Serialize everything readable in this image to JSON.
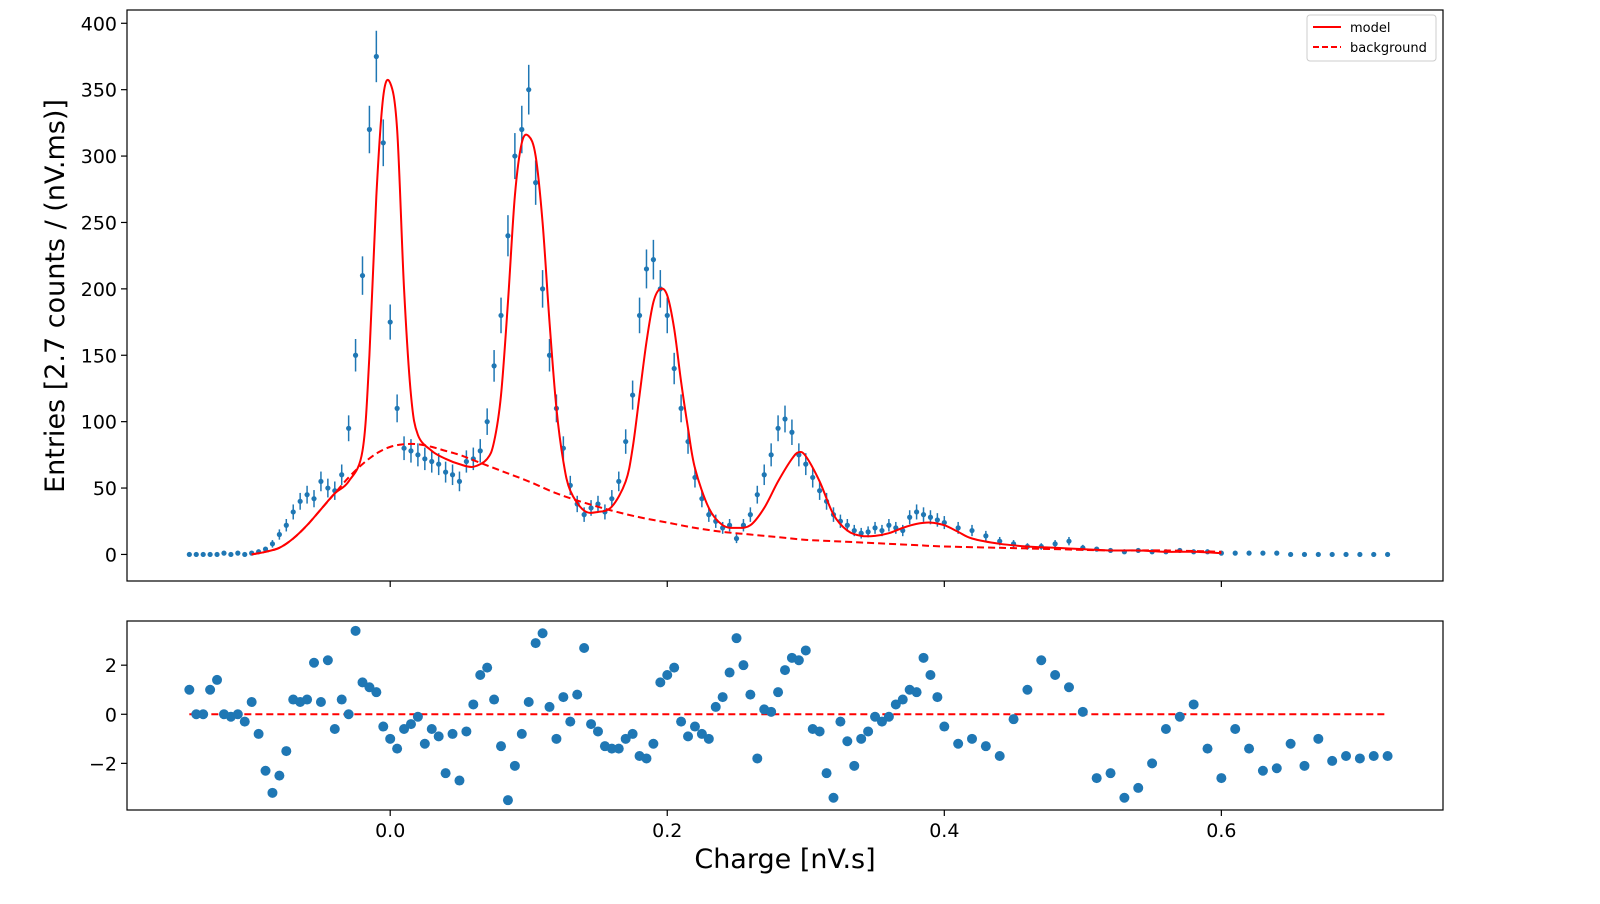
{
  "chart_data": [
    {
      "type": "scatter",
      "panel": "main",
      "xlabel": "",
      "ylabel": "Entries [2.7 counts / (nV.ms)]",
      "xlim": [
        -0.19,
        0.76
      ],
      "ylim": [
        -20,
        410
      ],
      "yticks": [
        0,
        50,
        100,
        150,
        200,
        250,
        300,
        350,
        400
      ],
      "yticklabels": [
        "0",
        "50",
        "100",
        "150",
        "200",
        "250",
        "300",
        "350",
        "400"
      ],
      "xticks": [
        0.0,
        0.2,
        0.4,
        0.6
      ],
      "legend": {
        "position": "top-right",
        "entries": [
          {
            "label": "model",
            "style": "solid",
            "color": "#ff0000"
          },
          {
            "label": "background",
            "style": "dashed",
            "color": "#ff0000"
          }
        ]
      },
      "colors": {
        "data": "#1f77b4",
        "model": "#ff0000"
      },
      "series": [
        {
          "name": "data",
          "style": "points-with-errorbars",
          "x": [
            -0.145,
            -0.14,
            -0.135,
            -0.13,
            -0.125,
            -0.12,
            -0.115,
            -0.11,
            -0.105,
            -0.1,
            -0.095,
            -0.09,
            -0.085,
            -0.08,
            -0.075,
            -0.07,
            -0.065,
            -0.06,
            -0.055,
            -0.05,
            -0.045,
            -0.04,
            -0.035,
            -0.03,
            -0.025,
            -0.02,
            -0.015,
            -0.01,
            -0.005,
            0.0,
            0.005,
            0.01,
            0.015,
            0.02,
            0.025,
            0.03,
            0.035,
            0.04,
            0.045,
            0.05,
            0.055,
            0.06,
            0.065,
            0.07,
            0.075,
            0.08,
            0.085,
            0.09,
            0.095,
            0.1,
            0.105,
            0.11,
            0.115,
            0.12,
            0.125,
            0.13,
            0.135,
            0.14,
            0.145,
            0.15,
            0.155,
            0.16,
            0.165,
            0.17,
            0.175,
            0.18,
            0.185,
            0.19,
            0.195,
            0.2,
            0.205,
            0.21,
            0.215,
            0.22,
            0.225,
            0.23,
            0.235,
            0.24,
            0.245,
            0.25,
            0.255,
            0.26,
            0.265,
            0.27,
            0.275,
            0.28,
            0.285,
            0.29,
            0.295,
            0.3,
            0.305,
            0.31,
            0.315,
            0.32,
            0.325,
            0.33,
            0.335,
            0.34,
            0.345,
            0.35,
            0.355,
            0.36,
            0.365,
            0.37,
            0.375,
            0.38,
            0.385,
            0.39,
            0.395,
            0.4,
            0.41,
            0.42,
            0.43,
            0.44,
            0.45,
            0.46,
            0.47,
            0.48,
            0.49,
            0.5,
            0.51,
            0.52,
            0.53,
            0.54,
            0.55,
            0.56,
            0.57,
            0.58,
            0.59,
            0.6,
            0.61,
            0.62,
            0.63,
            0.64,
            0.65,
            0.66,
            0.67,
            0.68,
            0.69,
            0.7,
            0.71,
            0.72
          ],
          "y": [
            0,
            0,
            0,
            0,
            0,
            1,
            0,
            1,
            0,
            1,
            2,
            4,
            8,
            15,
            22,
            32,
            40,
            45,
            42,
            55,
            50,
            48,
            60,
            95,
            150,
            210,
            320,
            375,
            310,
            175,
            110,
            80,
            78,
            75,
            72,
            70,
            68,
            62,
            60,
            55,
            70,
            72,
            78,
            100,
            142,
            180,
            240,
            300,
            320,
            350,
            280,
            200,
            150,
            110,
            80,
            52,
            38,
            30,
            35,
            38,
            32,
            42,
            55,
            85,
            120,
            180,
            215,
            222,
            200,
            180,
            140,
            110,
            85,
            58,
            42,
            30,
            25,
            20,
            22,
            12,
            22,
            30,
            45,
            60,
            75,
            95,
            102,
            92,
            75,
            68,
            58,
            48,
            40,
            30,
            25,
            22,
            18,
            16,
            17,
            20,
            18,
            22,
            20,
            18,
            28,
            32,
            30,
            28,
            26,
            24,
            20,
            18,
            14,
            10,
            8,
            6,
            6,
            8,
            10,
            5,
            4,
            3,
            2,
            3,
            2,
            2,
            3,
            2,
            2,
            1,
            1,
            1,
            1,
            1,
            0,
            0,
            0,
            0,
            0,
            0,
            0,
            0
          ]
        },
        {
          "name": "model",
          "style": "solid",
          "x": [
            -0.1,
            -0.09,
            -0.08,
            -0.07,
            -0.06,
            -0.05,
            -0.04,
            -0.03,
            -0.02,
            -0.015,
            -0.01,
            -0.005,
            0.0,
            0.005,
            0.01,
            0.015,
            0.02,
            0.03,
            0.04,
            0.05,
            0.06,
            0.07,
            0.075,
            0.08,
            0.085,
            0.09,
            0.095,
            0.1,
            0.105,
            0.11,
            0.115,
            0.12,
            0.125,
            0.13,
            0.14,
            0.15,
            0.16,
            0.17,
            0.175,
            0.18,
            0.185,
            0.19,
            0.195,
            0.2,
            0.205,
            0.21,
            0.215,
            0.22,
            0.23,
            0.24,
            0.25,
            0.26,
            0.27,
            0.28,
            0.29,
            0.295,
            0.3,
            0.31,
            0.32,
            0.33,
            0.34,
            0.35,
            0.36,
            0.37,
            0.38,
            0.39,
            0.4,
            0.41,
            0.42,
            0.44,
            0.46,
            0.48,
            0.5,
            0.52,
            0.54,
            0.56,
            0.58,
            0.6
          ],
          "y": [
            0,
            2,
            5,
            12,
            22,
            34,
            46,
            55,
            78,
            150,
            270,
            345,
            355,
            320,
            200,
            120,
            90,
            78,
            72,
            68,
            66,
            72,
            85,
            120,
            190,
            270,
            310,
            315,
            300,
            250,
            175,
            110,
            70,
            48,
            33,
            32,
            36,
            55,
            80,
            120,
            160,
            190,
            200,
            195,
            170,
            130,
            95,
            65,
            35,
            22,
            20,
            22,
            35,
            55,
            72,
            77,
            74,
            55,
            30,
            18,
            14,
            14,
            16,
            20,
            23,
            24,
            22,
            17,
            12,
            8,
            6,
            5,
            4,
            3,
            3,
            2,
            2,
            1
          ]
        },
        {
          "name": "background",
          "style": "dashed",
          "x": [
            -0.1,
            -0.09,
            -0.08,
            -0.07,
            -0.06,
            -0.05,
            -0.04,
            -0.03,
            -0.02,
            -0.01,
            0.0,
            0.01,
            0.02,
            0.03,
            0.04,
            0.05,
            0.06,
            0.08,
            0.1,
            0.12,
            0.14,
            0.16,
            0.18,
            0.2,
            0.22,
            0.24,
            0.26,
            0.28,
            0.3,
            0.32,
            0.34,
            0.36,
            0.38,
            0.4,
            0.44,
            0.48,
            0.52,
            0.56,
            0.6
          ],
          "y": [
            0,
            2,
            5,
            12,
            22,
            34,
            46,
            58,
            68,
            76,
            81,
            83,
            83,
            81,
            78,
            75,
            71,
            63,
            55,
            46,
            39,
            33,
            28,
            24,
            20,
            17,
            15,
            13,
            11,
            10,
            9,
            8,
            7,
            6,
            5,
            4,
            3,
            3,
            2
          ]
        }
      ]
    },
    {
      "type": "scatter",
      "panel": "residuals",
      "xlabel": "Charge [nV.s]",
      "ylabel": "",
      "xlim": [
        -0.19,
        0.76
      ],
      "ylim": [
        -3.9,
        3.8
      ],
      "yticks": [
        -2,
        0,
        2
      ],
      "yticklabels": [
        "−2",
        "0",
        "2"
      ],
      "xticks": [
        0.0,
        0.2,
        0.4,
        0.6
      ],
      "xticklabels": [
        "0.0",
        "0.2",
        "0.4",
        "0.6"
      ],
      "reference_line": {
        "y": 0,
        "style": "dashed",
        "color": "#ff0000",
        "x": [
          -0.145,
          0.72
        ]
      },
      "series": [
        {
          "name": "residuals",
          "x": [
            -0.145,
            -0.14,
            -0.135,
            -0.13,
            -0.125,
            -0.12,
            -0.115,
            -0.11,
            -0.105,
            -0.1,
            -0.095,
            -0.09,
            -0.085,
            -0.08,
            -0.075,
            -0.07,
            -0.065,
            -0.06,
            -0.055,
            -0.05,
            -0.045,
            -0.04,
            -0.035,
            -0.03,
            -0.025,
            -0.02,
            -0.015,
            -0.01,
            -0.005,
            0.0,
            0.005,
            0.01,
            0.015,
            0.02,
            0.025,
            0.03,
            0.035,
            0.04,
            0.045,
            0.05,
            0.055,
            0.06,
            0.065,
            0.07,
            0.075,
            0.08,
            0.085,
            0.09,
            0.095,
            0.1,
            0.105,
            0.11,
            0.115,
            0.12,
            0.125,
            0.13,
            0.135,
            0.14,
            0.145,
            0.15,
            0.155,
            0.16,
            0.165,
            0.17,
            0.175,
            0.18,
            0.185,
            0.19,
            0.195,
            0.2,
            0.205,
            0.21,
            0.215,
            0.22,
            0.225,
            0.23,
            0.235,
            0.24,
            0.245,
            0.25,
            0.255,
            0.26,
            0.265,
            0.27,
            0.275,
            0.28,
            0.285,
            0.29,
            0.295,
            0.3,
            0.305,
            0.31,
            0.315,
            0.32,
            0.325,
            0.33,
            0.335,
            0.34,
            0.345,
            0.35,
            0.355,
            0.36,
            0.365,
            0.37,
            0.375,
            0.38,
            0.385,
            0.39,
            0.395,
            0.4,
            0.41,
            0.42,
            0.43,
            0.44,
            0.45,
            0.46,
            0.47,
            0.48,
            0.49,
            0.5,
            0.51,
            0.52,
            0.53,
            0.54,
            0.55,
            0.56,
            0.57,
            0.58,
            0.59,
            0.6,
            0.61,
            0.62,
            0.63,
            0.64,
            0.65,
            0.66,
            0.67,
            0.68,
            0.69,
            0.7,
            0.71,
            0.72
          ],
          "y": [
            1.0,
            0.0,
            0.0,
            1.0,
            1.4,
            0.0,
            -0.1,
            0.0,
            -0.3,
            0.5,
            -0.8,
            -2.3,
            -3.2,
            -2.5,
            -1.5,
            0.6,
            0.5,
            0.6,
            2.1,
            0.5,
            2.2,
            -0.6,
            0.6,
            0.0,
            3.4,
            1.3,
            1.1,
            0.9,
            -0.5,
            -1.0,
            -1.4,
            -0.6,
            -0.4,
            -0.1,
            -1.2,
            -0.6,
            -0.9,
            -2.4,
            -0.8,
            -2.7,
            -0.7,
            0.4,
            1.6,
            1.9,
            0.6,
            -1.3,
            -3.5,
            -2.1,
            -0.8,
            0.5,
            2.9,
            3.3,
            0.3,
            -1.0,
            0.7,
            -0.3,
            0.8,
            2.7,
            -0.4,
            -0.7,
            -1.3,
            -1.4,
            -1.4,
            -1.0,
            -0.8,
            -1.7,
            -1.8,
            -1.2,
            1.3,
            1.6,
            1.9,
            -0.3,
            -0.9,
            -0.5,
            -0.8,
            -1.0,
            0.3,
            0.7,
            1.7,
            3.1,
            2.0,
            0.8,
            -1.8,
            0.2,
            0.1,
            0.9,
            1.8,
            2.3,
            2.2,
            2.6,
            -0.6,
            -0.7,
            -2.4,
            -3.4,
            -0.3,
            -1.1,
            -2.1,
            -1.0,
            -0.7,
            -0.1,
            -0.3,
            -0.1,
            0.4,
            0.6,
            1.0,
            0.9,
            2.3,
            1.6,
            0.7,
            -0.5,
            -1.2,
            -1.0,
            -1.3,
            -1.7,
            -0.2,
            1.0,
            2.2,
            1.6,
            1.1,
            0.1,
            -2.6,
            -2.4,
            -3.4,
            -3.0,
            -2.0,
            -0.6,
            -0.1,
            0.4,
            -1.4,
            -2.6,
            -0.6,
            -1.4,
            -2.3,
            -2.2,
            -1.2,
            -2.1,
            -1.0,
            -1.9,
            -1.7,
            -1.8,
            -1.7,
            -1.7
          ]
        }
      ]
    }
  ]
}
